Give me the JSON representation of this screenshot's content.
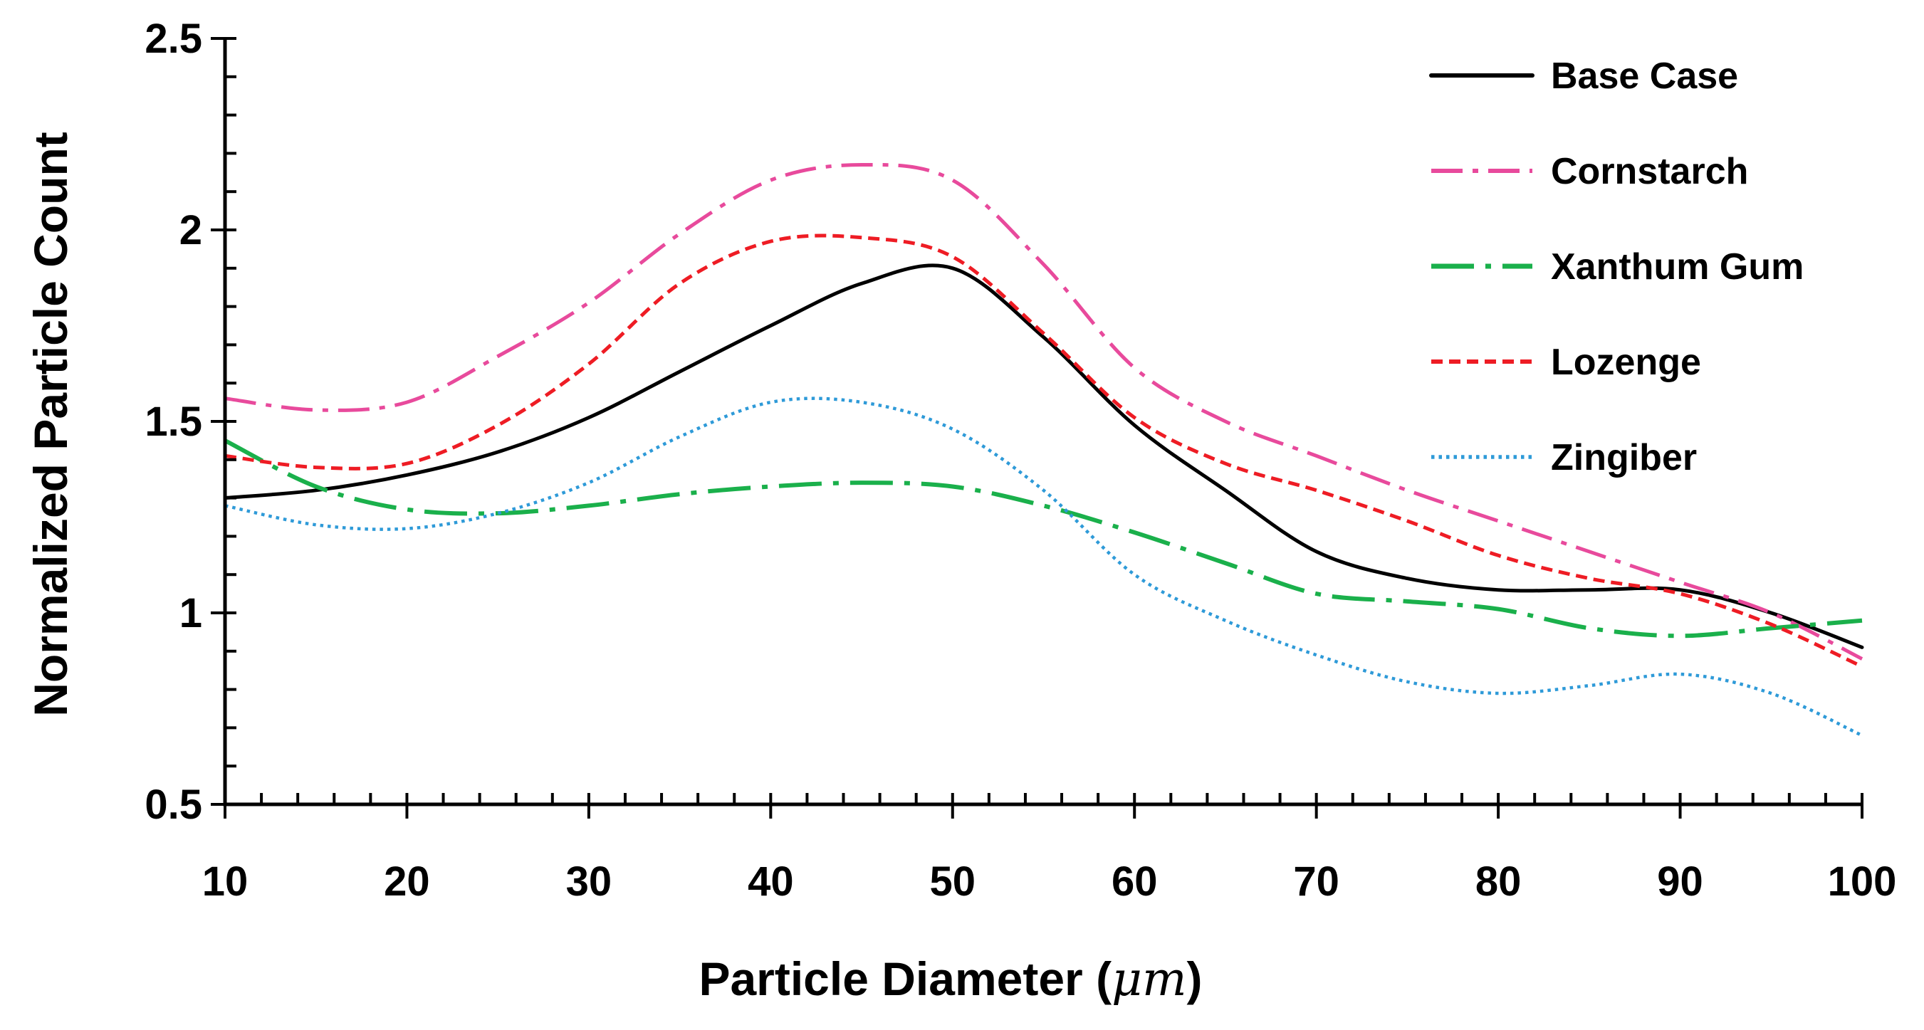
{
  "chart_data": {
    "type": "line",
    "title": "",
    "xlabel_text": "Particle Diameter (",
    "xlabel_unit": "μm",
    "xlabel_close": ")",
    "ylabel": "Normalized Particle Count",
    "xlim": [
      10,
      100
    ],
    "ylim": [
      0.5,
      2.5
    ],
    "xticks": [
      10,
      20,
      30,
      40,
      50,
      60,
      70,
      80,
      90,
      100
    ],
    "xtick_labels": [
      "10",
      "20",
      "30",
      "40",
      "50",
      "60",
      "70",
      "80",
      "90",
      "100"
    ],
    "x_minor_step": 2,
    "yticks": [
      0.5,
      1,
      1.5,
      2,
      2.5
    ],
    "ytick_labels": [
      "0.5",
      "1",
      "1.5",
      "2",
      "2.5"
    ],
    "y_minor_step": 0.1,
    "grid": false,
    "legend_position": "top-right",
    "x": [
      10,
      15,
      20,
      25,
      30,
      35,
      40,
      45,
      50,
      55,
      60,
      65,
      70,
      75,
      80,
      85,
      90,
      95,
      100
    ],
    "series": [
      {
        "name": "Base Case",
        "color": "#000000",
        "dash": "solid",
        "values": [
          1.3,
          1.32,
          1.36,
          1.42,
          1.51,
          1.63,
          1.75,
          1.86,
          1.9,
          1.72,
          1.49,
          1.32,
          1.16,
          1.09,
          1.06,
          1.06,
          1.06,
          1.0,
          0.91
        ]
      },
      {
        "name": "Cornstarch",
        "color": "#e84a9c",
        "dash": "dash-dot",
        "values": [
          1.56,
          1.53,
          1.55,
          1.67,
          1.81,
          1.99,
          2.13,
          2.17,
          2.13,
          1.91,
          1.64,
          1.5,
          1.41,
          1.32,
          1.24,
          1.16,
          1.08,
          1.0,
          0.88
        ]
      },
      {
        "name": "Xanthum Gum",
        "color": "#1ab04b",
        "dash": "long-dash-dot",
        "values": [
          1.45,
          1.33,
          1.27,
          1.26,
          1.28,
          1.31,
          1.33,
          1.34,
          1.33,
          1.28,
          1.21,
          1.13,
          1.05,
          1.03,
          1.01,
          0.96,
          0.94,
          0.96,
          0.98
        ]
      },
      {
        "name": "Lozenge",
        "color": "#ee1c24",
        "dash": "dashed",
        "values": [
          1.41,
          1.38,
          1.39,
          1.49,
          1.65,
          1.86,
          1.97,
          1.98,
          1.93,
          1.73,
          1.51,
          1.39,
          1.32,
          1.24,
          1.15,
          1.09,
          1.05,
          0.97,
          0.86
        ]
      },
      {
        "name": "Zingiber",
        "color": "#2e9ad8",
        "dash": "dotted",
        "values": [
          1.28,
          1.23,
          1.22,
          1.26,
          1.34,
          1.46,
          1.55,
          1.55,
          1.48,
          1.32,
          1.1,
          0.98,
          0.89,
          0.82,
          0.79,
          0.81,
          0.84,
          0.79,
          0.68
        ]
      }
    ]
  }
}
